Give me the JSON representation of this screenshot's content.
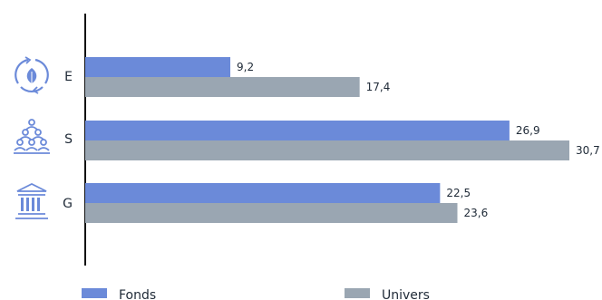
{
  "chart_data": {
    "type": "bar",
    "orientation": "horizontal",
    "categories": [
      "E",
      "S",
      "G"
    ],
    "category_icons": [
      "leaf-cycle-icon",
      "people-group-icon",
      "institution-building-icon"
    ],
    "series": [
      {
        "name": "Fonds",
        "color": "#6b8ad9",
        "values": [
          9.2,
          26.9,
          22.5
        ],
        "labels": [
          "9,2",
          "26,9",
          "22,5"
        ]
      },
      {
        "name": "Univers",
        "color": "#9aa6b2",
        "values": [
          17.4,
          30.7,
          23.6
        ],
        "labels": [
          "17,4",
          "30,7",
          "23,6"
        ]
      }
    ],
    "xlim": [
      0,
      30.7
    ],
    "grid": false,
    "legend_position": "bottom",
    "icon_color": "#6b8ad9"
  }
}
